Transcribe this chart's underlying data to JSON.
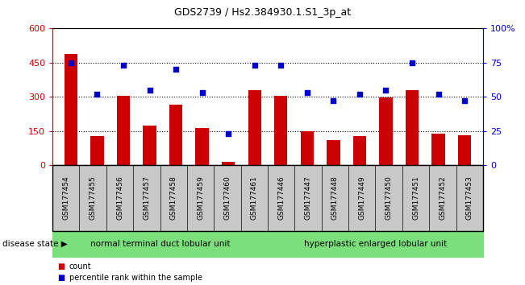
{
  "title": "GDS2739 / Hs2.384930.1.S1_3p_at",
  "samples": [
    "GSM177454",
    "GSM177455",
    "GSM177456",
    "GSM177457",
    "GSM177458",
    "GSM177459",
    "GSM177460",
    "GSM177461",
    "GSM177446",
    "GSM177447",
    "GSM177448",
    "GSM177449",
    "GSM177450",
    "GSM177451",
    "GSM177452",
    "GSM177453"
  ],
  "counts": [
    490,
    130,
    305,
    175,
    265,
    165,
    15,
    330,
    305,
    148,
    110,
    128,
    298,
    330,
    138,
    132
  ],
  "percentiles": [
    75,
    52,
    73,
    55,
    70,
    53,
    23,
    73,
    73,
    53,
    47,
    52,
    55,
    75,
    52,
    47
  ],
  "group1_label": "normal terminal duct lobular unit",
  "group2_label": "hyperplastic enlarged lobular unit",
  "group1_count": 8,
  "group2_count": 8,
  "disease_state_label": "disease state",
  "bar_color": "#cc0000",
  "dot_color": "#0000cc",
  "ylim_left": [
    0,
    600
  ],
  "ylim_right": [
    0,
    100
  ],
  "yticks_left": [
    0,
    150,
    300,
    450,
    600
  ],
  "yticks_right": [
    0,
    25,
    50,
    75,
    100
  ],
  "grid_dotted_values": [
    150,
    300,
    450
  ],
  "group_color": "#7be07b",
  "tick_bg_color": "#c8c8c8",
  "legend_count_label": "count",
  "legend_pct_label": "percentile rank within the sample",
  "bar_width": 0.5,
  "fig_width": 6.51,
  "fig_height": 3.54,
  "dpi": 100
}
